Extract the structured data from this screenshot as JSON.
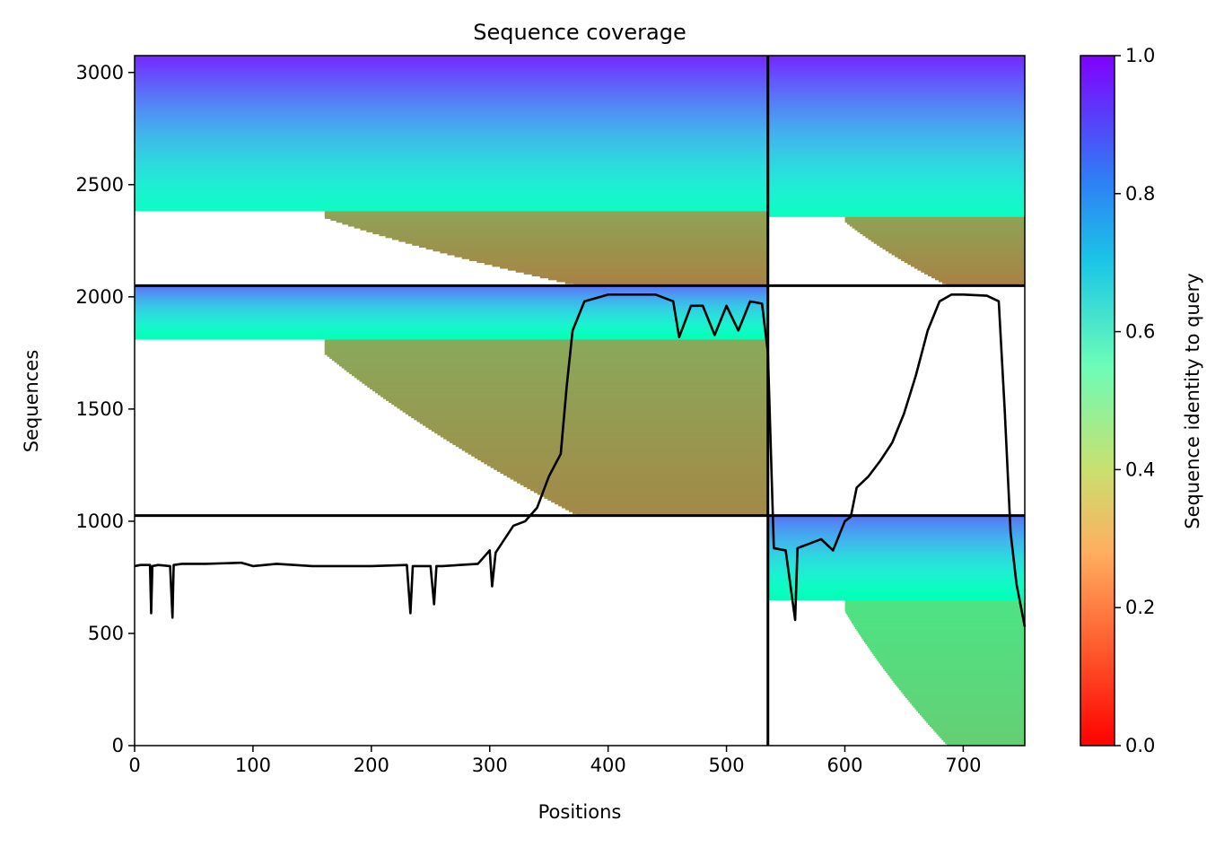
{
  "chart_data": {
    "type": "heatmap",
    "title": "Sequence coverage",
    "xlabel": "Positions",
    "ylabel": "Sequences",
    "xlim": [
      0,
      752
    ],
    "ylim": [
      0,
      3075
    ],
    "xticks": [
      0,
      100,
      200,
      300,
      400,
      500,
      600,
      700
    ],
    "yticks": [
      0,
      500,
      1000,
      1500,
      2000,
      2500,
      3000
    ],
    "colorbar": {
      "label": "Sequence identity to query",
      "colormap": "rainbow",
      "range": [
        0.0,
        1.0
      ],
      "ticks": [
        "0.0",
        "0.2",
        "0.4",
        "0.6",
        "0.8",
        "1.0"
      ]
    },
    "chain_boundaries_x": [
      535
    ],
    "chain_boundaries_y": [
      1025,
      2050
    ],
    "blocks": [
      {
        "name": "upper-left",
        "x_range": [
          0,
          535
        ],
        "y_range": [
          2050,
          3075
        ],
        "shape": "staircase-left",
        "top_identity": 0.95,
        "mid_identity": 0.55,
        "low_identity": 0.17,
        "notch_y": 2380,
        "full_width_bottom": 2380
      },
      {
        "name": "upper-right",
        "x_range": [
          535,
          752
        ],
        "y_range": [
          2050,
          3075
        ],
        "shape": "staircase-left",
        "top_identity": 0.95,
        "mid_identity": 0.55,
        "low_identity": 0.17,
        "notch_y": 2360,
        "full_width_bottom": 2360
      },
      {
        "name": "middle-left",
        "x_range": [
          0,
          535
        ],
        "y_range": [
          1025,
          2050
        ],
        "shape": "staircase-left",
        "top_identity": 0.85,
        "mid_identity": 0.5,
        "low_identity": 0.18,
        "notch_y": 1810,
        "full_width_bottom": 1810
      },
      {
        "name": "bottom-right",
        "x_range": [
          535,
          752
        ],
        "y_range": [
          0,
          1025
        ],
        "shape": "staircase-left",
        "top_identity": 0.85,
        "mid_identity": 0.5,
        "low_identity": 0.3,
        "notch_y": 650,
        "full_width_bottom": 650
      }
    ],
    "coverage_line": {
      "x": [
        0,
        5,
        13,
        14,
        15,
        20,
        30,
        32,
        33,
        40,
        60,
        90,
        100,
        120,
        150,
        200,
        230,
        233,
        235,
        250,
        253,
        255,
        260,
        290,
        300,
        302,
        305,
        320,
        330,
        340,
        350,
        360,
        365,
        370,
        380,
        400,
        440,
        455,
        460,
        470,
        480,
        490,
        500,
        510,
        520,
        530,
        535,
        540,
        550,
        558,
        560,
        570,
        580,
        590,
        600,
        605,
        610,
        620,
        630,
        640,
        650,
        660,
        670,
        680,
        690,
        700,
        720,
        730,
        735,
        740,
        745,
        752
      ],
      "y": [
        800,
        805,
        805,
        590,
        800,
        805,
        800,
        570,
        805,
        810,
        810,
        815,
        800,
        810,
        800,
        800,
        805,
        590,
        800,
        800,
        630,
        800,
        800,
        810,
        870,
        710,
        860,
        980,
        1000,
        1060,
        1200,
        1300,
        1600,
        1850,
        1980,
        2010,
        2010,
        1980,
        1820,
        1960,
        1960,
        1830,
        1960,
        1850,
        1980,
        1970,
        1750,
        880,
        870,
        560,
        880,
        900,
        920,
        870,
        1000,
        1020,
        1150,
        1200,
        1270,
        1350,
        1480,
        1650,
        1850,
        1980,
        2010,
        2010,
        2005,
        1980,
        1500,
        950,
        720,
        530
      ]
    }
  }
}
